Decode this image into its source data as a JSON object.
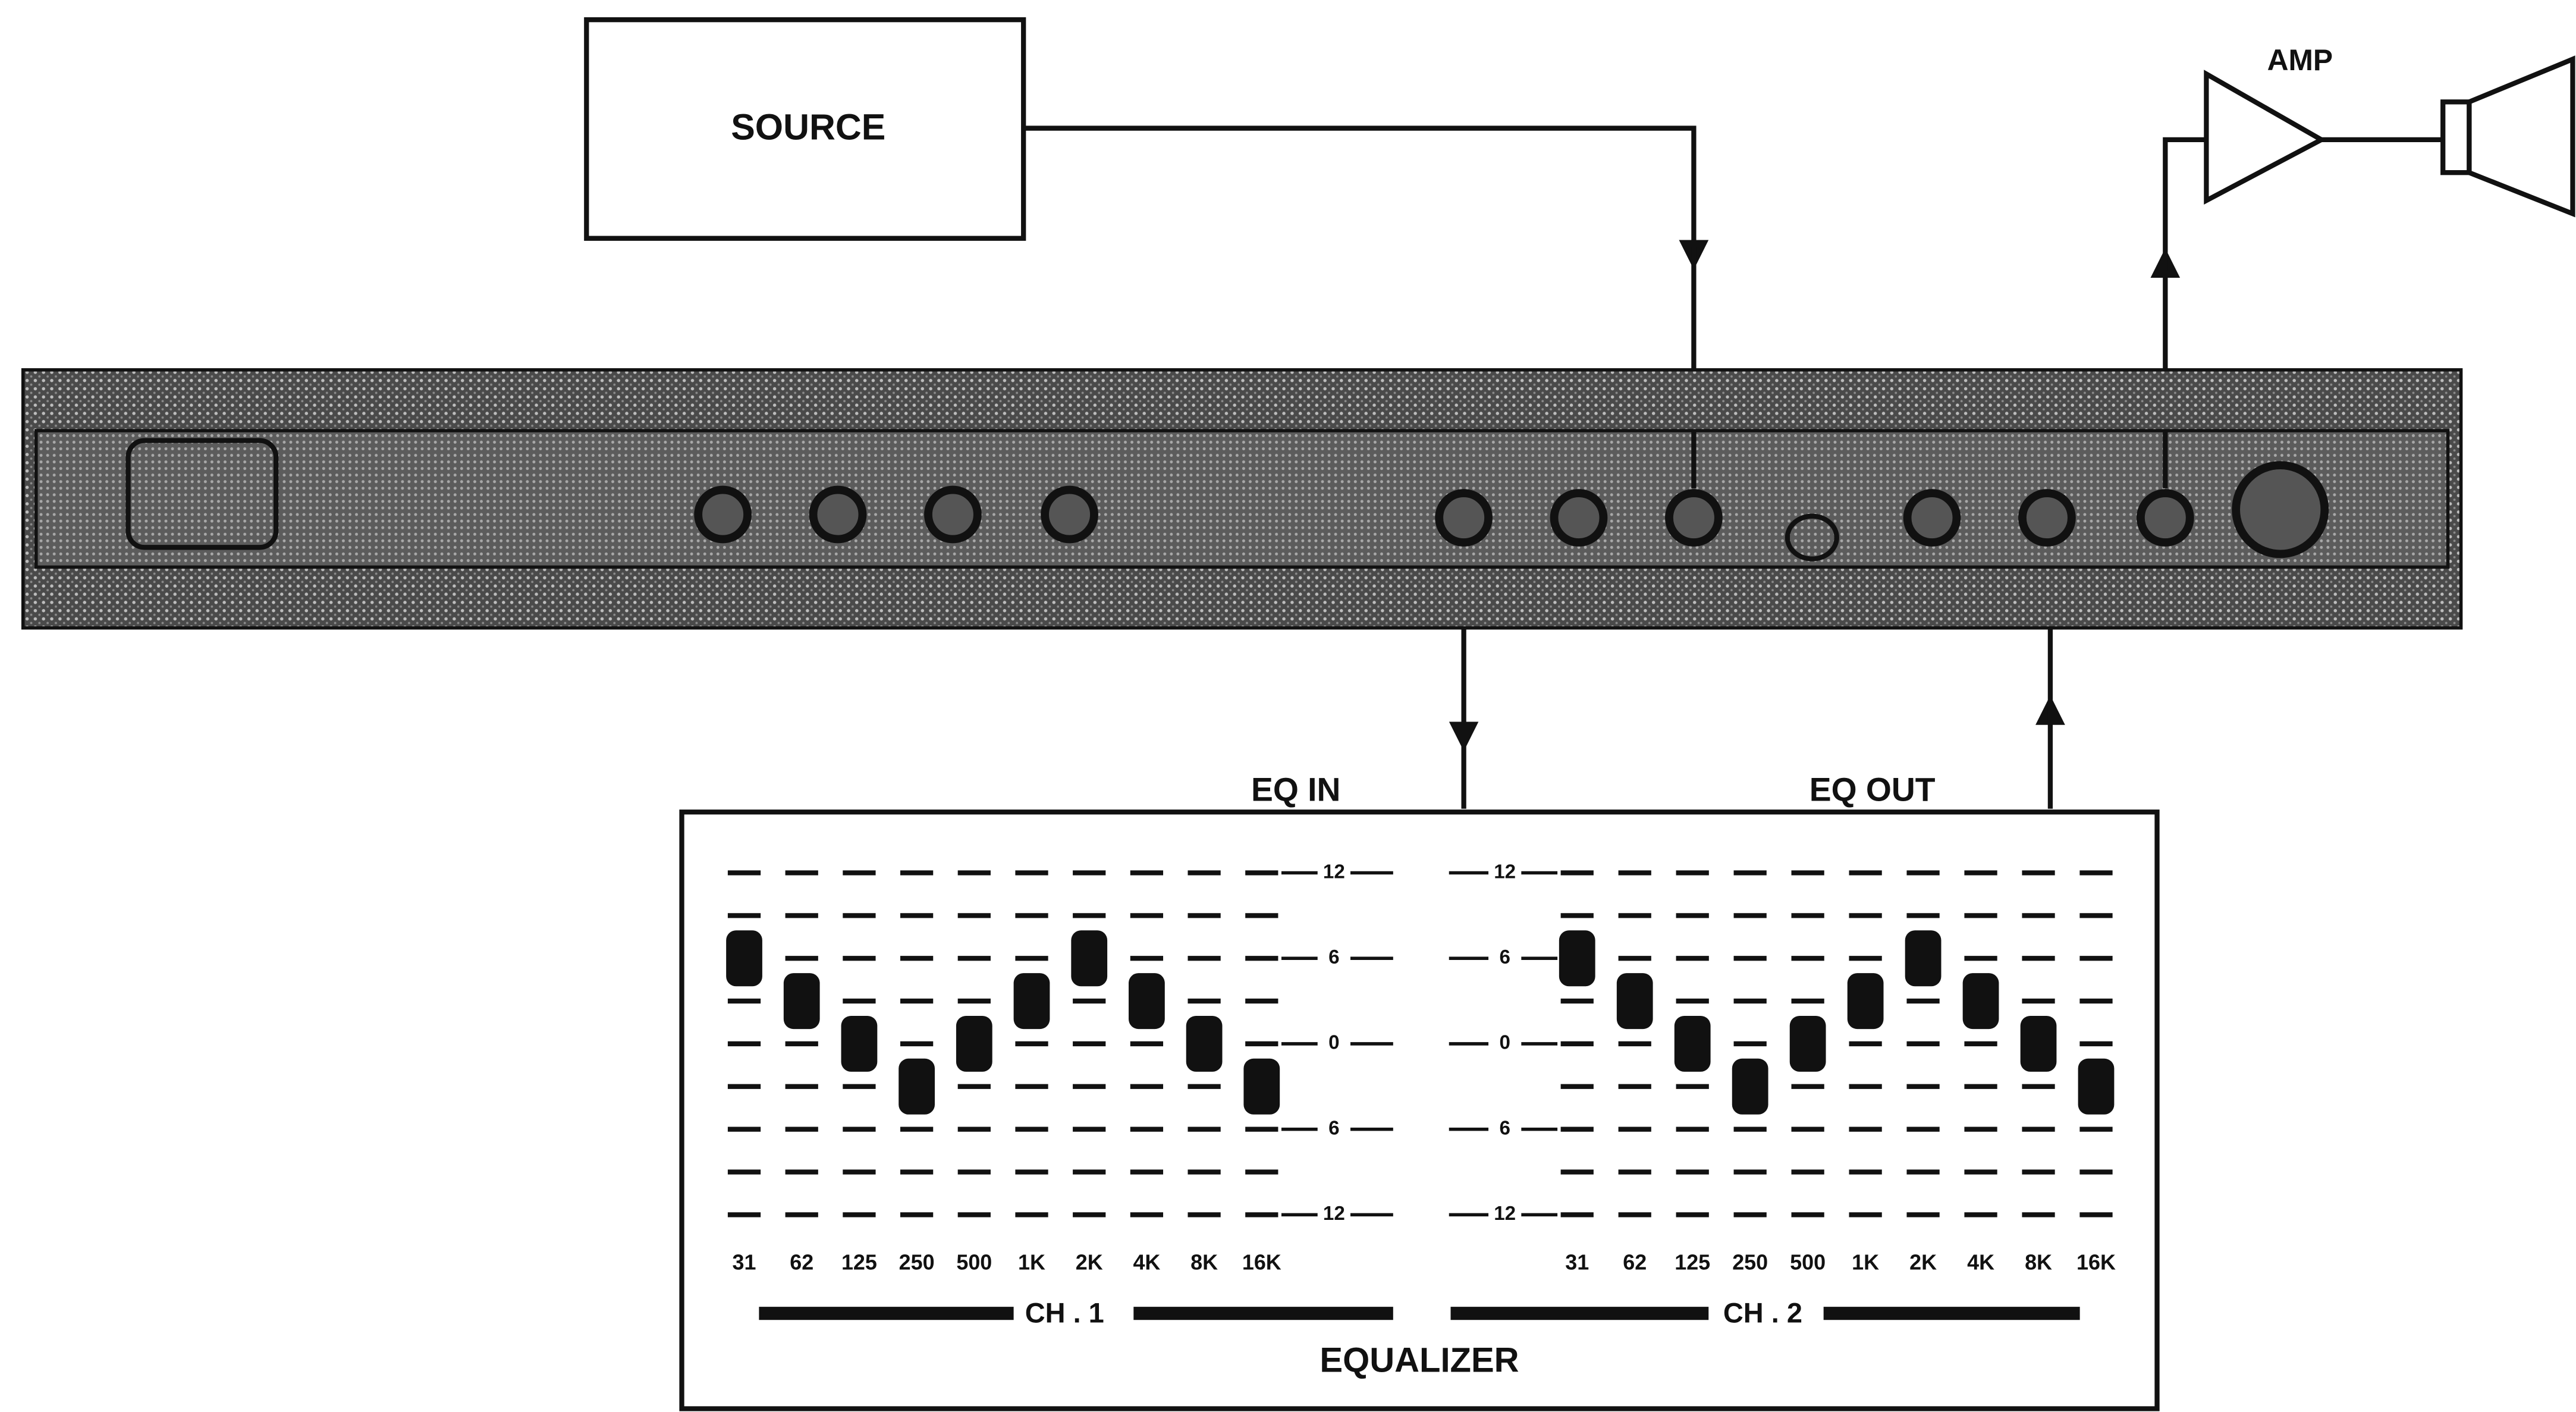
{
  "source": {
    "label": "SOURCE"
  },
  "amp": {
    "label": "AMP"
  },
  "eq_in_label": "EQ IN",
  "eq_out_label": "EQ OUT",
  "equalizer": {
    "title": "EQUALIZER",
    "scale": [
      {
        "value": 12,
        "label": "12"
      },
      {
        "value": 6,
        "label": "6"
      },
      {
        "value": 0,
        "label": "0"
      },
      {
        "value": -6,
        "label": "6"
      },
      {
        "value": -12,
        "label": "12"
      }
    ],
    "bands": [
      "31",
      "62",
      "125",
      "250",
      "500",
      "1K",
      "2K",
      "4K",
      "8K",
      "16K"
    ],
    "channels": [
      {
        "label": "CH . 1",
        "settings_db": [
          6,
          3,
          0,
          -3,
          0,
          3,
          6,
          3,
          0,
          -3
        ]
      },
      {
        "label": "CH . 2",
        "settings_db": [
          6,
          3,
          0,
          -3,
          0,
          3,
          6,
          3,
          0,
          -3
        ]
      }
    ]
  }
}
